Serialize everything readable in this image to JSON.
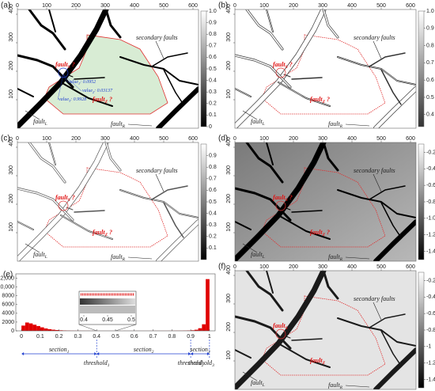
{
  "panels": [
    {
      "label": "(a)",
      "xticks": [
        0,
        100,
        200,
        300,
        400,
        500,
        600
      ],
      "yticks": [
        100,
        200,
        300,
        400
      ],
      "colorbar": {
        "lim": [
          0,
          1
        ],
        "ticks": [
          0,
          0.1,
          0.2,
          0.3,
          0.4,
          0.5,
          0.6,
          0.7,
          0.8,
          0.9,
          {
            "value": 1,
            "label": "1.0"
          }
        ]
      },
      "annotations": [
        {
          "text": "secondary faults"
        },
        {
          "text": "fault",
          "sub": "S",
          "after": " ?"
        },
        {
          "text": "fault",
          "sub": "Z",
          "after": " ?"
        },
        {
          "text": "fault",
          "sub": "L"
        },
        {
          "text": "fault",
          "sub": "R"
        }
      ],
      "values": [
        {
          "text": "value",
          "sub": "1",
          "after": ": 0.0952"
        },
        {
          "text": "value",
          "sub": "2",
          "after": ": 0.03137"
        },
        {
          "text": "value",
          "sub": "3",
          "after": ": 0.9928"
        }
      ]
    },
    {
      "label": "(b)",
      "xticks": [
        0,
        100,
        200,
        300,
        400,
        500,
        600
      ],
      "yticks": [
        100,
        200,
        300,
        400
      ],
      "colorbar": {
        "lim": [
          0.33,
          1
        ],
        "ticks": [
          0.4,
          0.5,
          0.6,
          0.7,
          0.8,
          0.9,
          {
            "value": 1,
            "label": "1.0"
          }
        ]
      },
      "annotations": [
        {
          "text": "secondary faults"
        },
        {
          "text": "fault",
          "sub": "S",
          "after": " ?"
        },
        {
          "text": "fault",
          "sub": "Z",
          "after": " ?"
        },
        {
          "text": "fault",
          "sub": "L"
        },
        {
          "text": "fault",
          "sub": "R"
        }
      ]
    },
    {
      "label": "(c)",
      "xticks": [
        0,
        100,
        200,
        300,
        400,
        500,
        600
      ],
      "yticks": [
        100,
        200,
        300,
        400
      ],
      "colorbar": {
        "lim": [
          0,
          1
        ],
        "ticks": [
          0.1,
          0.2,
          0.3,
          0.4,
          0.5,
          0.6,
          0.7,
          0.8,
          0.9
        ]
      },
      "annotations": [
        {
          "text": "secondary faults"
        },
        {
          "text": "fault",
          "sub": "S",
          "after": " ?"
        },
        {
          "text": "fault",
          "sub": "Z",
          "after": " ?"
        },
        {
          "text": "fault",
          "sub": "L"
        },
        {
          "text": "fault",
          "sub": "R"
        }
      ]
    },
    {
      "label": "(d)",
      "xticks": [
        0,
        100,
        200,
        300,
        400,
        500,
        600
      ],
      "yticks": [
        100,
        200,
        300,
        400
      ],
      "colorbar": {
        "lim": [
          -1.5,
          -0.1
        ],
        "ticks": [
          -0.2,
          -0.4,
          -0.6,
          -0.8,
          {
            "value": -1,
            "label": "-1.0"
          },
          -1.2,
          -1.4
        ]
      },
      "annotations": [
        {
          "text": "secondary faults"
        },
        {
          "text": "fault",
          "sub": "S",
          "after": " ?"
        },
        {
          "text": "fault",
          "sub": "Z",
          "after": " ?"
        },
        {
          "text": "fault",
          "sub": "L"
        },
        {
          "text": "fault",
          "sub": "R"
        }
      ]
    },
    {
      "label": "(f)",
      "xticks": [
        0,
        100,
        200,
        300,
        400,
        500,
        600
      ],
      "yticks": [
        100,
        200,
        300,
        400
      ],
      "colorbar": {
        "lim": [
          -1.5,
          -0.1
        ],
        "ticks": [
          -0.2,
          -0.4,
          -0.6,
          -0.8,
          -1,
          -1.2,
          -1.4
        ]
      },
      "annotations": [
        {
          "text": "secondary faults"
        },
        {
          "text": "fault",
          "sub": "S"
        },
        {
          "text": "fault",
          "sub": "Z"
        },
        {
          "text": "fault",
          "sub": "L"
        },
        {
          "text": "fault",
          "sub": "R"
        }
      ]
    }
  ],
  "chart_data": {
    "type": "histogram",
    "label": "(e)",
    "color": "#e00000",
    "bins": [
      0,
      0.02,
      0.04,
      0.06,
      0.08,
      0.1,
      0.12,
      0.14,
      0.16,
      0.18,
      0.2,
      0.22,
      0.24,
      0.26,
      0.28,
      0.3,
      0.32,
      0.34,
      0.36,
      0.38,
      0.4,
      0.42,
      0.44,
      0.46,
      0.48,
      0.5,
      0.52,
      0.54,
      0.56,
      0.58,
      0.6,
      0.62,
      0.64,
      0.66,
      0.68,
      0.7,
      0.72,
      0.74,
      0.76,
      0.78,
      0.8,
      0.82,
      0.84,
      0.86,
      0.88,
      0.9,
      0.92,
      0.94,
      0.96,
      0.98,
      1
    ],
    "counts": [
      1200,
      1900,
      1700,
      1400,
      1100,
      800,
      550,
      380,
      260,
      180,
      120,
      80,
      55,
      40,
      30,
      25,
      20,
      18,
      15,
      12,
      10,
      9,
      8,
      8,
      7,
      7,
      7,
      8,
      8,
      9,
      10,
      10,
      11,
      12,
      13,
      14,
      15,
      17,
      19,
      22,
      26,
      32,
      40,
      55,
      80,
      130,
      250,
      600,
      1500,
      11800
    ],
    "xlim": [
      -0.03,
      1.03
    ],
    "ylim": [
      0,
      13000
    ],
    "xticks": [
      0,
      0.1,
      0.2,
      0.3,
      0.4,
      0.5,
      0.6,
      0.7,
      0.8,
      0.9,
      1
    ],
    "yticks": [
      0,
      2000,
      4000,
      6000,
      8000,
      {
        "value": 10000,
        "label": "10,000"
      },
      {
        "value": 12000,
        "label": "12,000"
      }
    ],
    "inset": {
      "lim": [
        0.39,
        0.51
      ],
      "ticks": [
        0.4,
        0.45,
        0.5
      ]
    },
    "sections": [
      {
        "text": "section",
        "sub": "1"
      },
      {
        "text": "section",
        "sub": "2"
      },
      {
        "text": "section",
        "sub": "3"
      }
    ],
    "thresholds": [
      {
        "text": "threshold",
        "sub": "1",
        "value": 0.4
      },
      {
        "text": "threshold",
        "sub": "2",
        "value": 0.9
      },
      {
        "text": "threshold",
        "sub": "3",
        "value": 1
      }
    ]
  }
}
